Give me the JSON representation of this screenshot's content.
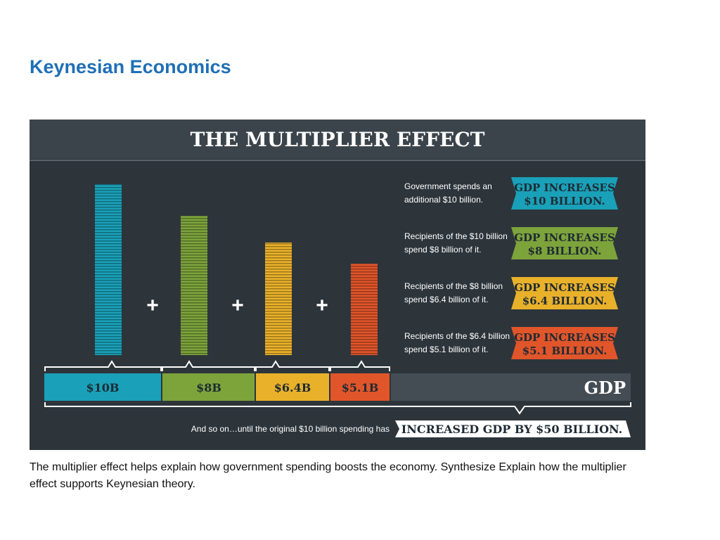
{
  "header": {
    "title": "Keynesian Economics"
  },
  "infographic": {
    "title": "THE MULTIPLIER EFFECT",
    "operator": "+",
    "steps": [
      {
        "lines": [
          "Government spends an",
          "additional $10 billion."
        ],
        "badge": [
          "GDP INCREASES",
          "$10 BILLION."
        ]
      },
      {
        "lines": [
          "Recipients of the $10 billion",
          "spend $8 billion of it."
        ],
        "badge": [
          "GDP INCREASES",
          "$8 BILLION."
        ]
      },
      {
        "lines": [
          "Recipients of the $8 billion",
          "spend $6.4 billion of it."
        ],
        "badge": [
          "GDP INCREASES",
          "$6.4 BILLION."
        ]
      },
      {
        "lines": [
          "Recipients of the $6.4 billion",
          "spend $5.1 billion of it."
        ],
        "badge": [
          "GDP INCREASES",
          "$5.1 BILLION."
        ]
      }
    ],
    "segments": [
      "$10B",
      "$8B",
      "$6.4B",
      "$5.1B",
      "GDP"
    ],
    "footer": {
      "text": "And so on…until the original $10 billion spending has",
      "banner": "INCREASED GDP BY $50 BILLION."
    }
  },
  "caption": "The multiplier effect helps explain how government spending boosts the economy. Synthesize Explain how the multiplier effect supports Keynesian theory."
}
